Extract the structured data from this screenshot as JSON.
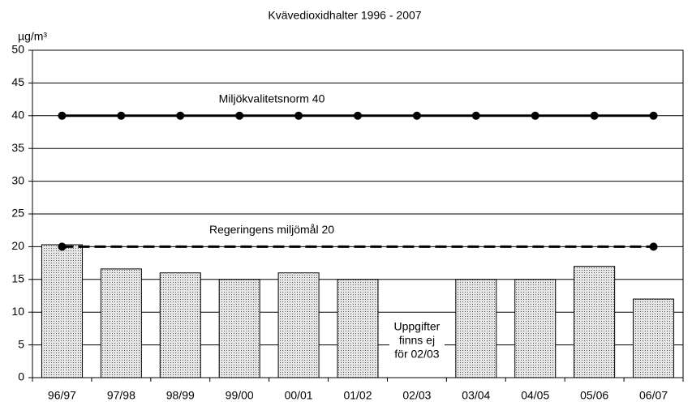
{
  "chart_data": {
    "type": "bar",
    "title": "Kvävedioxidhalter 1996 - 2007",
    "ylabel": "µg/m³",
    "categories": [
      "96/97",
      "97/98",
      "98/99",
      "99/00",
      "00/01",
      "01/02",
      "02/03",
      "03/04",
      "04/05",
      "05/06",
      "06/07"
    ],
    "values": [
      20.3,
      16.6,
      16,
      15,
      16,
      15,
      null,
      15,
      15,
      17,
      12
    ],
    "color": "#d9d9d9",
    "lines": [
      {
        "name": "Miljökvalitetsnorm 40",
        "values": [
          40,
          40,
          40,
          40,
          40,
          40,
          40,
          40,
          40,
          40,
          40
        ],
        "color": "#000000",
        "dashed": false,
        "markers": "all"
      },
      {
        "name": "Regeringens miljömål 20",
        "values": [
          20,
          20,
          20,
          20,
          20,
          20,
          20,
          20,
          20,
          20,
          20
        ],
        "color": "#000000",
        "dashed": true,
        "markers": "ends"
      }
    ],
    "annotation": [
      "Uppgifter",
      "finns ej",
      "för 02/03"
    ],
    "ylim": [
      0,
      50
    ],
    "yticks": [
      0,
      5,
      10,
      15,
      20,
      25,
      30,
      35,
      40,
      45,
      50
    ],
    "grid": true
  }
}
